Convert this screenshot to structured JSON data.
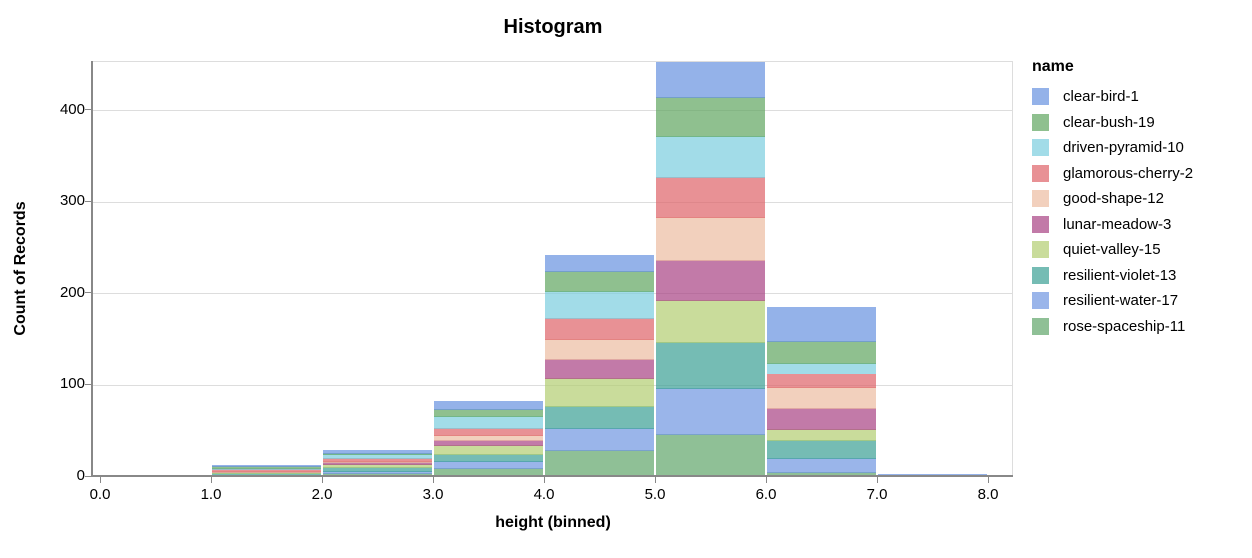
{
  "chart_data": {
    "type": "bar",
    "subtype": "stacked-histogram",
    "title": "Histogram",
    "xlabel": "height (binned)",
    "ylabel": "Count of Records",
    "legend_title": "name",
    "legend_position": "right",
    "grid": true,
    "x_ticks": [
      "0.0",
      "1.0",
      "2.0",
      "3.0",
      "4.0",
      "5.0",
      "6.0",
      "7.0",
      "8.0"
    ],
    "y_ticks": [
      0,
      100,
      200,
      300,
      400
    ],
    "ylim": [
      0,
      453
    ],
    "bins": [
      [
        0,
        1
      ],
      [
        1,
        2
      ],
      [
        2,
        3
      ],
      [
        3,
        4
      ],
      [
        4,
        5
      ],
      [
        5,
        6
      ],
      [
        6,
        7
      ],
      [
        7,
        8
      ]
    ],
    "bin_totals": [
      2,
      13,
      30,
      83,
      242,
      453,
      186,
      3
    ],
    "stack_order": "first legend entry on top of stack",
    "series": [
      {
        "name": "clear-bird-1",
        "color": "rgba(102,146,224,0.7)",
        "values": [
          0,
          1,
          4,
          9,
          17,
          38,
          37,
          1
        ]
      },
      {
        "name": "clear-bush-19",
        "color": "rgba(95,165,95,0.7)",
        "values": [
          0,
          2,
          1,
          7,
          22,
          43,
          24,
          0
        ]
      },
      {
        "name": "driven-pyramid-10",
        "color": "rgba(122,205,222,0.7)",
        "values": [
          0,
          1,
          4,
          14,
          29,
          44,
          12,
          0
        ]
      },
      {
        "name": "glamorous-cherry-2",
        "color": "rgba(222,99,104,0.7)",
        "values": [
          0,
          2,
          3,
          7,
          23,
          44,
          15,
          0
        ]
      },
      {
        "name": "good-shape-12",
        "color": "rgba(236,188,161,0.7)",
        "values": [
          0,
          1,
          2,
          6,
          22,
          47,
          23,
          0
        ]
      },
      {
        "name": "lunar-meadow-3",
        "color": "rgba(168,66,131,0.7)",
        "values": [
          0,
          1,
          2,
          5,
          21,
          44,
          23,
          2
        ]
      },
      {
        "name": "quiet-valley-15",
        "color": "rgba(178,205,112,0.7)",
        "values": [
          1,
          1,
          3,
          10,
          31,
          46,
          12,
          0
        ]
      },
      {
        "name": "resilient-violet-13",
        "color": "rgba(59,159,148,0.7)",
        "values": [
          0,
          2,
          4,
          8,
          23,
          50,
          19,
          0
        ]
      },
      {
        "name": "resilient-water-17",
        "color": "rgba(111,149,225,0.7)",
        "values": [
          0,
          1,
          3,
          7,
          25,
          50,
          16,
          0
        ]
      },
      {
        "name": "rose-spaceship-11",
        "color": "rgba(96,165,105,0.7)",
        "values": [
          1,
          1,
          4,
          10,
          29,
          47,
          5,
          0
        ]
      }
    ],
    "style": {
      "grid_color": "#dddddd",
      "axis_color": "#888888",
      "label_color": "#000000"
    }
  }
}
